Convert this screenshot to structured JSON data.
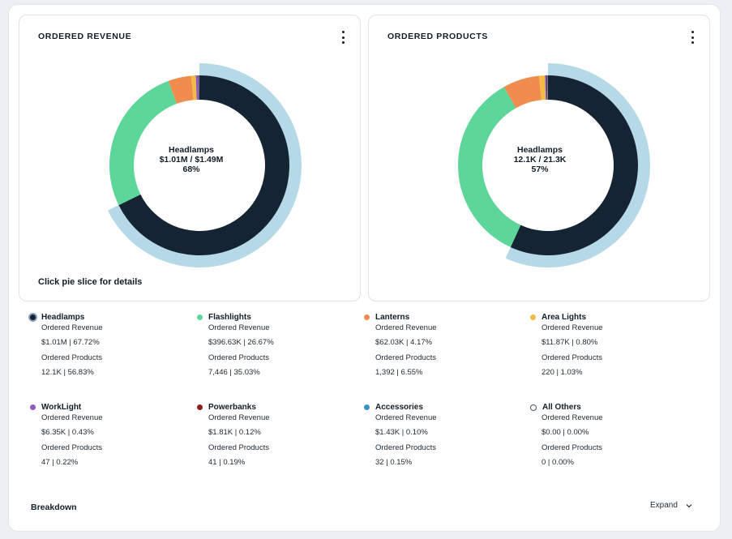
{
  "cards": {
    "revenue": {
      "title": "ORDERED REVENUE",
      "center": {
        "name": "Headlamps",
        "value": "$1.01M / $1.49M",
        "pct": "68%"
      },
      "hint": "Click pie slice for details"
    },
    "products": {
      "title": "ORDERED PRODUCTS",
      "center": {
        "name": "Headlamps",
        "value": "12.1K / 21.3K",
        "pct": "57%"
      }
    }
  },
  "chart_data": [
    {
      "type": "pie",
      "title": "ORDERED REVENUE",
      "categories": [
        "Headlamps",
        "Flashlights",
        "Lanterns",
        "Area Lights",
        "WorkLight",
        "Powerbanks",
        "Accessories",
        "All Others"
      ],
      "values": [
        67.72,
        26.67,
        4.17,
        0.8,
        0.43,
        0.12,
        0.1,
        0.0
      ],
      "highlighted": "Headlamps"
    },
    {
      "type": "pie",
      "title": "ORDERED PRODUCTS",
      "categories": [
        "Headlamps",
        "Flashlights",
        "Lanterns",
        "Area Lights",
        "WorkLight",
        "Powerbanks",
        "Accessories",
        "All Others"
      ],
      "values": [
        56.83,
        35.03,
        6.55,
        1.03,
        0.22,
        0.19,
        0.15,
        0.0
      ],
      "highlighted": "Headlamps"
    }
  ],
  "colors": {
    "Headlamps": "#152432",
    "Flashlights": "#5cd699",
    "Lanterns": "#ef8c4e",
    "Area Lights": "#f2bb44",
    "WorkLight": "#8a5cc2",
    "Powerbanks": "#8b1f1f",
    "Accessories": "#3d91c2",
    "All Others": "#ffffff",
    "highlight_ring": "#b5d9e6"
  },
  "legend": {
    "revenue_label": "Ordered Revenue",
    "products_label": "Ordered Products",
    "items": [
      {
        "name": "Headlamps",
        "revenue": "$1.01M | 67.72%",
        "products": "12.1K | 56.83%"
      },
      {
        "name": "Flashlights",
        "revenue": "$396.63K | 26.67%",
        "products": "7,446 | 35.03%"
      },
      {
        "name": "Lanterns",
        "revenue": "$62.03K | 4.17%",
        "products": "1,392 | 6.55%"
      },
      {
        "name": "Area Lights",
        "revenue": "$11.87K | 0.80%",
        "products": "220 | 1.03%"
      },
      {
        "name": "WorkLight",
        "revenue": "$6.35K | 0.43%",
        "products": "47 | 0.22%"
      },
      {
        "name": "Powerbanks",
        "revenue": "$1.81K | 0.12%",
        "products": "41 | 0.19%"
      },
      {
        "name": "Accessories",
        "revenue": "$1.43K | 0.10%",
        "products": "32 | 0.15%"
      },
      {
        "name": "All Others",
        "revenue": "$0.00 | 0.00%",
        "products": "0 | 0.00%"
      }
    ]
  },
  "footer": {
    "breakdown": "Breakdown",
    "expand": "Expand"
  }
}
